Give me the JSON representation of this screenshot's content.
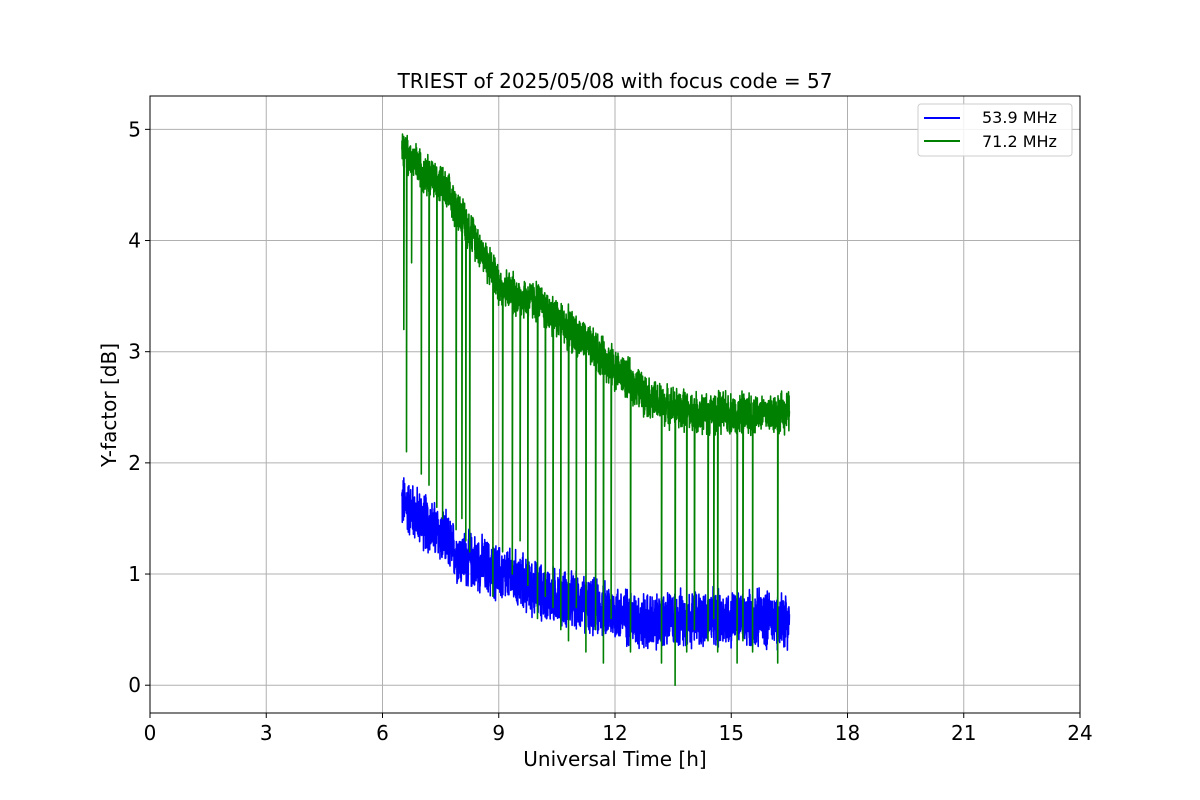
{
  "chart_data": {
    "type": "line",
    "title": "TRIEST of 2025/05/08 with focus code = 57",
    "xlabel": "Universal Time [h]",
    "ylabel": "Y-factor [dB]",
    "xlim": [
      0,
      24
    ],
    "ylim": [
      -0.25,
      5.3
    ],
    "xticks": [
      "0",
      "3",
      "6",
      "9",
      "12",
      "15",
      "18",
      "21",
      "24"
    ],
    "yticks": [
      "0",
      "1",
      "2",
      "3",
      "4",
      "5"
    ],
    "grid": true,
    "legend_position": "top-right",
    "series": [
      {
        "name": "53.9 MHz",
        "color": "#0000ff",
        "x": [
          6.5,
          7.0,
          7.5,
          8.0,
          8.5,
          9.0,
          9.5,
          10.0,
          10.5,
          11.0,
          11.5,
          12.0,
          12.5,
          13.0,
          13.5,
          14.0,
          14.5,
          15.0,
          15.5,
          16.0,
          16.5
        ],
        "y": [
          1.65,
          1.5,
          1.35,
          1.15,
          1.1,
          1.0,
          0.95,
          0.85,
          0.8,
          0.75,
          0.7,
          0.65,
          0.6,
          0.55,
          0.6,
          0.6,
          0.6,
          0.6,
          0.6,
          0.6,
          0.6
        ],
        "noise": 0.3,
        "drops": []
      },
      {
        "name": "71.2 MHz",
        "color": "#008000",
        "x": [
          6.5,
          7.0,
          7.5,
          8.0,
          8.5,
          9.0,
          9.5,
          10.0,
          10.5,
          11.0,
          11.5,
          12.0,
          12.5,
          13.0,
          13.5,
          14.0,
          14.5,
          15.0,
          15.5,
          16.0,
          16.5
        ],
        "y": [
          4.8,
          4.65,
          4.5,
          4.25,
          3.95,
          3.6,
          3.5,
          3.45,
          3.3,
          3.15,
          3.0,
          2.85,
          2.7,
          2.55,
          2.5,
          2.45,
          2.45,
          2.45,
          2.45,
          2.45,
          2.45
        ],
        "noise": 0.22,
        "drops": [
          [
            6.55,
            3.2
          ],
          [
            6.62,
            2.1
          ],
          [
            6.75,
            3.8
          ],
          [
            7.0,
            1.9
          ],
          [
            7.2,
            1.8
          ],
          [
            7.4,
            1.6
          ],
          [
            7.55,
            1.5
          ],
          [
            7.9,
            1.4
          ],
          [
            8.05,
            1.5
          ],
          [
            8.15,
            1.3
          ],
          [
            8.25,
            1.2
          ],
          [
            8.85,
            0.8
          ],
          [
            9.1,
            1.2
          ],
          [
            9.35,
            1.0
          ],
          [
            9.55,
            1.3
          ],
          [
            9.75,
            0.9
          ],
          [
            10.0,
            0.6
          ],
          [
            10.2,
            0.8
          ],
          [
            10.4,
            0.7
          ],
          [
            10.6,
            0.5
          ],
          [
            10.8,
            0.4
          ],
          [
            11.0,
            0.7
          ],
          [
            11.25,
            0.3
          ],
          [
            11.5,
            0.5
          ],
          [
            11.7,
            0.2
          ],
          [
            11.9,
            0.6
          ],
          [
            12.4,
            0.3
          ],
          [
            13.2,
            0.2
          ],
          [
            13.55,
            0.0
          ],
          [
            13.85,
            0.3
          ],
          [
            14.05,
            0.5
          ],
          [
            14.4,
            0.4
          ],
          [
            14.55,
            0.6
          ],
          [
            14.65,
            0.3
          ],
          [
            15.15,
            0.2
          ],
          [
            15.3,
            0.4
          ],
          [
            15.55,
            0.3
          ],
          [
            16.2,
            0.2
          ]
        ]
      }
    ]
  }
}
